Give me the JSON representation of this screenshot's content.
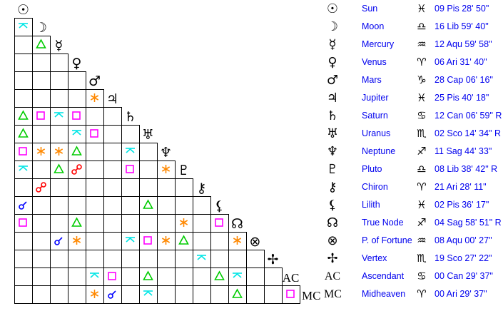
{
  "aspect_colors": {
    "conjunction": "#0000ff",
    "opposition": "#ff0000",
    "trine": "#00cc00",
    "square": "#ff00ff",
    "sextile": "#ff8800",
    "quincunx": "#00e5e5"
  },
  "bodies": [
    {
      "glyph": "☉",
      "name": "Sun",
      "sign_glyph": "♓",
      "position": "09 Pis 28' 50\""
    },
    {
      "glyph": "☽",
      "name": "Moon",
      "sign_glyph": "♎",
      "position": "16 Lib 59' 40\""
    },
    {
      "glyph": "☿",
      "name": "Mercury",
      "sign_glyph": "♒",
      "position": "12 Aqu 59' 58\""
    },
    {
      "glyph": "♀",
      "name": "Venus",
      "sign_glyph": "♈",
      "position": "06 Ari 31' 40\""
    },
    {
      "glyph": "♂",
      "name": "Mars",
      "sign_glyph": "♑",
      "position": "28 Cap 06' 16\""
    },
    {
      "glyph": "♃",
      "name": "Jupiter",
      "sign_glyph": "♓",
      "position": "25 Pis 40' 18\""
    },
    {
      "glyph": "♄",
      "name": "Saturn",
      "sign_glyph": "♋",
      "position": "12 Can 06' 59\" R"
    },
    {
      "glyph": "♅",
      "name": "Uranus",
      "sign_glyph": "♏",
      "position": "02 Sco 14' 34\" R"
    },
    {
      "glyph": "♆",
      "name": "Neptune",
      "sign_glyph": "♐",
      "position": "11 Sag 44' 33\""
    },
    {
      "glyph": "♇",
      "name": "Pluto",
      "sign_glyph": "♎",
      "position": "08 Lib 38' 42\" R"
    },
    {
      "glyph": "⚷",
      "name": "Chiron",
      "sign_glyph": "♈",
      "position": "21 Ari 28' 11\""
    },
    {
      "glyph": "⚸",
      "name": "Lilith",
      "sign_glyph": "♓",
      "position": "02 Pis 36' 17\""
    },
    {
      "glyph": "☊",
      "name": "True Node",
      "sign_glyph": "♐",
      "position": "04 Sag 58' 51\" R"
    },
    {
      "glyph": "⊗",
      "name": "P. of Fortune",
      "sign_glyph": "♒",
      "position": "08 Aqu 00' 27\""
    },
    {
      "glyph": "✢",
      "name": "Vertex",
      "sign_glyph": "♏",
      "position": "19 Sco 27' 22\""
    },
    {
      "glyph": "AC",
      "name": "Ascendant",
      "sign_glyph": "♋",
      "position": "00 Can 29' 37\""
    },
    {
      "glyph": "MC",
      "name": "Midheaven",
      "sign_glyph": "♈",
      "position": "00 Ari 29' 37\""
    }
  ],
  "aspects": [
    {
      "body": "Moon",
      "with": "Sun",
      "type": "quincunx"
    },
    {
      "body": "Mercury",
      "with": "Moon",
      "type": "trine"
    },
    {
      "body": "Jupiter",
      "with": "Mars",
      "type": "sextile"
    },
    {
      "body": "Saturn",
      "with": "Sun",
      "type": "trine"
    },
    {
      "body": "Saturn",
      "with": "Moon",
      "type": "square"
    },
    {
      "body": "Saturn",
      "with": "Mercury",
      "type": "quincunx"
    },
    {
      "body": "Saturn",
      "with": "Venus",
      "type": "square"
    },
    {
      "body": "Uranus",
      "with": "Sun",
      "type": "trine"
    },
    {
      "body": "Uranus",
      "with": "Venus",
      "type": "quincunx"
    },
    {
      "body": "Uranus",
      "with": "Mars",
      "type": "square"
    },
    {
      "body": "Neptune",
      "with": "Sun",
      "type": "square"
    },
    {
      "body": "Neptune",
      "with": "Moon",
      "type": "sextile"
    },
    {
      "body": "Neptune",
      "with": "Mercury",
      "type": "sextile"
    },
    {
      "body": "Neptune",
      "with": "Venus",
      "type": "trine"
    },
    {
      "body": "Neptune",
      "with": "Saturn",
      "type": "quincunx"
    },
    {
      "body": "Pluto",
      "with": "Sun",
      "type": "quincunx"
    },
    {
      "body": "Pluto",
      "with": "Mercury",
      "type": "trine"
    },
    {
      "body": "Pluto",
      "with": "Venus",
      "type": "opposition"
    },
    {
      "body": "Pluto",
      "with": "Saturn",
      "type": "square"
    },
    {
      "body": "Pluto",
      "with": "Neptune",
      "type": "sextile"
    },
    {
      "body": "Chiron",
      "with": "Moon",
      "type": "opposition"
    },
    {
      "body": "Lilith",
      "with": "Sun",
      "type": "conjunction"
    },
    {
      "body": "Lilith",
      "with": "Uranus",
      "type": "trine"
    },
    {
      "body": "True Node",
      "with": "Sun",
      "type": "square"
    },
    {
      "body": "True Node",
      "with": "Venus",
      "type": "trine"
    },
    {
      "body": "True Node",
      "with": "Pluto",
      "type": "sextile"
    },
    {
      "body": "True Node",
      "with": "Lilith",
      "type": "square"
    },
    {
      "body": "P. of Fortune",
      "with": "Mercury",
      "type": "conjunction"
    },
    {
      "body": "P. of Fortune",
      "with": "Venus",
      "type": "sextile"
    },
    {
      "body": "P. of Fortune",
      "with": "Saturn",
      "type": "quincunx"
    },
    {
      "body": "P. of Fortune",
      "with": "Uranus",
      "type": "square"
    },
    {
      "body": "P. of Fortune",
      "with": "Neptune",
      "type": "sextile"
    },
    {
      "body": "P. of Fortune",
      "with": "Pluto",
      "type": "trine"
    },
    {
      "body": "P. of Fortune",
      "with": "True Node",
      "type": "sextile"
    },
    {
      "body": "Vertex",
      "with": "Chiron",
      "type": "quincunx"
    },
    {
      "body": "Ascendant",
      "with": "Mars",
      "type": "quincunx"
    },
    {
      "body": "Ascendant",
      "with": "Jupiter",
      "type": "square"
    },
    {
      "body": "Ascendant",
      "with": "Uranus",
      "type": "trine"
    },
    {
      "body": "Ascendant",
      "with": "Lilith",
      "type": "trine"
    },
    {
      "body": "Ascendant",
      "with": "True Node",
      "type": "quincunx"
    },
    {
      "body": "Midheaven",
      "with": "Mars",
      "type": "sextile"
    },
    {
      "body": "Midheaven",
      "with": "Jupiter",
      "type": "conjunction"
    },
    {
      "body": "Midheaven",
      "with": "Uranus",
      "type": "quincunx"
    },
    {
      "body": "Midheaven",
      "with": "True Node",
      "type": "trine"
    },
    {
      "body": "Midheaven",
      "with": "Ascendant",
      "type": "square"
    }
  ]
}
